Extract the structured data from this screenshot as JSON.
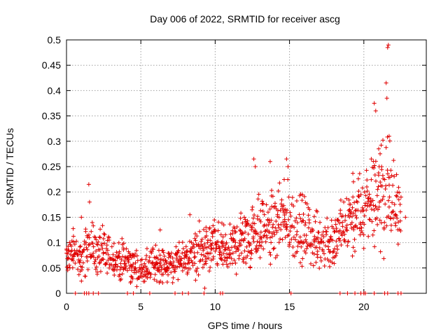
{
  "chart_data": {
    "type": "scatter",
    "title": "Day 006 of 2022, SRMTID for receiver ascg",
    "xlabel": "GPS time / hours",
    "ylabel": "SRMTID / TECUs",
    "xlim": [
      0,
      24.2
    ],
    "ylim": [
      0,
      0.5
    ],
    "xticks": [
      0,
      5,
      10,
      15,
      20
    ],
    "xtick_labels": [
      "0",
      "5",
      "10",
      "15",
      "20"
    ],
    "yticks": [
      0,
      0.05,
      0.1,
      0.15,
      0.2,
      0.25,
      0.3,
      0.35,
      0.4,
      0.45,
      0.5
    ],
    "ytick_labels": [
      "0",
      "0.05",
      "0.1",
      "0.15",
      "0.2",
      "0.25",
      "0.3",
      "0.35",
      "0.4",
      "0.45",
      "0.5"
    ],
    "grid": true,
    "marker": "+",
    "series": [
      {
        "name": "SRMTID",
        "color": "#e00000",
        "trend": [
          [
            0.0,
            0.07
          ],
          [
            0.5,
            0.08
          ],
          [
            1.0,
            0.06
          ],
          [
            1.5,
            0.1
          ],
          [
            2.0,
            0.08
          ],
          [
            3.0,
            0.07
          ],
          [
            4.0,
            0.06
          ],
          [
            5.0,
            0.045
          ],
          [
            6.0,
            0.06
          ],
          [
            7.0,
            0.055
          ],
          [
            8.0,
            0.065
          ],
          [
            9.0,
            0.085
          ],
          [
            10.0,
            0.09
          ],
          [
            11.0,
            0.085
          ],
          [
            12.0,
            0.11
          ],
          [
            13.0,
            0.13
          ],
          [
            14.0,
            0.13
          ],
          [
            15.0,
            0.14
          ],
          [
            16.0,
            0.12
          ],
          [
            17.0,
            0.1
          ],
          [
            18.0,
            0.1
          ],
          [
            19.0,
            0.14
          ],
          [
            20.0,
            0.16
          ],
          [
            20.8,
            0.2
          ],
          [
            21.5,
            0.2
          ],
          [
            22.5,
            0.18
          ]
        ],
        "notable_points": [
          [
            0.2,
            0.1
          ],
          [
            1.0,
            0.15
          ],
          [
            1.5,
            0.215
          ],
          [
            1.55,
            0.18
          ],
          [
            6.3,
            0.125
          ],
          [
            8.3,
            0.155
          ],
          [
            9.3,
            0.01
          ],
          [
            12.6,
            0.265
          ],
          [
            12.7,
            0.25
          ],
          [
            13.7,
            0.26
          ],
          [
            14.8,
            0.265
          ],
          [
            14.9,
            0.25
          ],
          [
            19.3,
            0.22
          ],
          [
            20.2,
            0.21
          ],
          [
            20.5,
            0.265
          ],
          [
            20.7,
            0.375
          ],
          [
            20.8,
            0.36
          ],
          [
            21.0,
            0.285
          ],
          [
            21.5,
            0.415
          ],
          [
            21.6,
            0.485
          ],
          [
            21.65,
            0.49
          ],
          [
            21.55,
            0.385
          ],
          [
            21.7,
            0.31
          ],
          [
            22.5,
            0.19
          ],
          [
            22.8,
            0.15
          ]
        ],
        "zero_points": [
          0.6,
          1.2,
          1.35,
          1.5,
          1.8,
          2.15,
          4.1,
          4.5,
          5.6,
          7.3,
          7.8,
          8.2,
          9.25,
          10.35,
          10.5,
          15.1,
          18.4,
          18.9,
          19.4,
          19.8,
          20.0,
          20.1,
          20.7,
          21.4,
          21.6,
          22.3,
          22.5
        ]
      }
    ]
  }
}
